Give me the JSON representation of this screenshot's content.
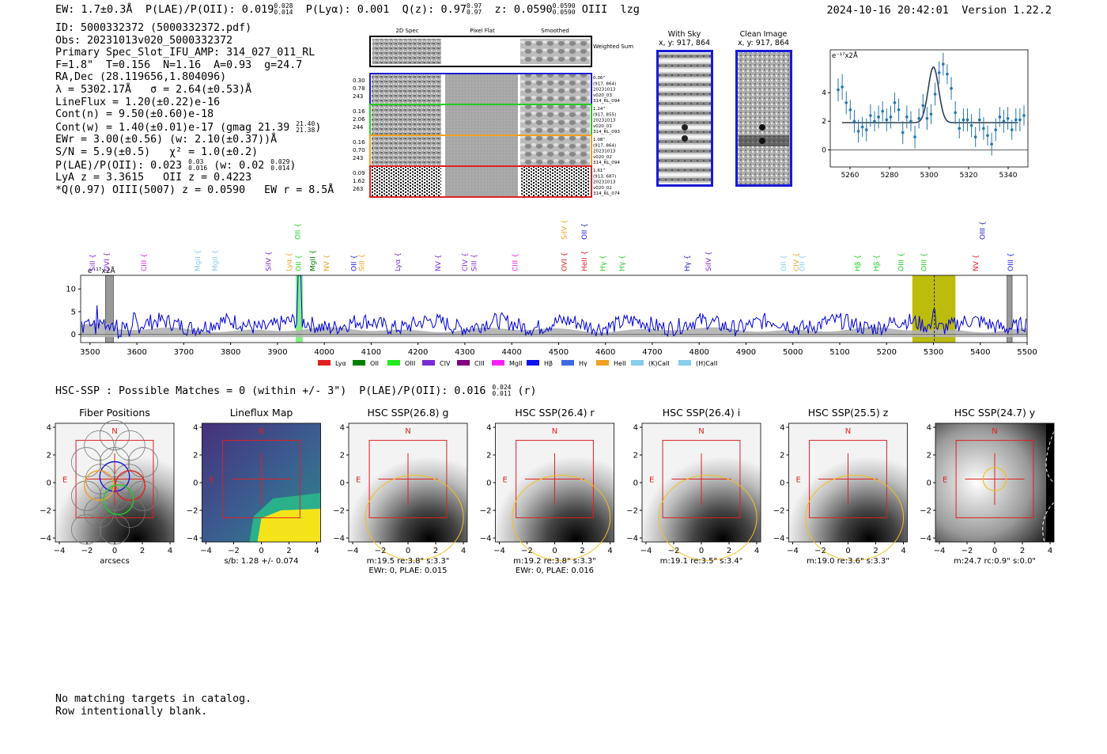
{
  "header": {
    "ew": "EW: 1.7±0.3Å",
    "plae_label": "P(LAE)/P(OII): 0.019",
    "plae_hi": "0.028",
    "plae_lo": "0.014",
    "plya": "P(Lyα): 0.001",
    "q_label": "Q(z): 0.97",
    "q_hi": "0.97",
    "q_lo": "0.97",
    "z_label": "z: 0.0590",
    "z_hi": "0.0590",
    "z_lo": "0.0590",
    "line": "OIII",
    "flag": "lzg",
    "timestamp": "2024-10-16 20:42:01",
    "version": "Version 1.22.2"
  },
  "info": {
    "id": "ID: 5000332372 (5000332372.pdf)",
    "obs": "Obs: 20231013v020_5000332372",
    "primary": "Primary Spec_Slot_IFU_AMP: 314_027_011_RL",
    "params": "F=1.8\"  T=0.156  N=1.16  A=0.93  g=24.7",
    "radec": "RA,Dec (28.119656,1.804096)",
    "lambda": "λ = 5302.17Å   σ = 2.64(±0.53)Å",
    "lineflux": "LineFlux = 1.20(±0.22)e-16",
    "contn": "Cont(n) = 9.50(±0.60)e-18",
    "contw": "Cont(w) = 1.40(±0.01)e-17 (gmag 21.39",
    "contw_hi": "21.40",
    "contw_lo": "21.38",
    "ewr": "EWr = 3.00(±0.56) (w: 2.10(±0.37))Å",
    "sn": "S/N = 5.9(±0.5)   χ² = 1.0(±0.2)",
    "plae": "P(LAE)/P(OII): 0.023",
    "plae_hi": "0.03",
    "plae_lo": "0.016",
    "plae_w": "(w: 0.02",
    "plae_w_hi": "0.029",
    "plae_w_lo": "0.014",
    "lya": "LyA z = 3.3615   OII z = 0.4223",
    "qline": "*Q(0.97) OIII(5007) z = 0.0590   EW r = 8.5Å"
  },
  "cutouts": {
    "col_headers": [
      "2D Spec",
      "Pixel Flat",
      "Smoothed"
    ],
    "weighted_sum": "Weighted Sum",
    "rows": [
      {
        "left": [
          "0.30",
          "0.78",
          "243"
        ],
        "right": [
          "0.36\"",
          "(917, 864)",
          "20231013",
          "v020_03",
          "314_RL_094"
        ],
        "color": "#1a1ad6"
      },
      {
        "left": [
          "0.16",
          "2.06",
          "244"
        ],
        "right": [
          "1.24\"",
          "(917, 855)",
          "20231013",
          "v020_01",
          "314_RL_093"
        ],
        "color": "#22cc22"
      },
      {
        "left": [
          "0.16",
          "0.70",
          "243"
        ],
        "right": [
          "1.08\"",
          "(917, 864)",
          "20231013",
          "v020_02",
          "314_RL_094"
        ],
        "color": "#f2a020"
      },
      {
        "left": [
          "0.09",
          "1.62",
          "263"
        ],
        "right": [
          "1.61\"",
          "(913, 687)",
          "20231013",
          "v020_02",
          "314_RL_074"
        ],
        "color": "#e02020"
      }
    ],
    "with_sky": "With Sky",
    "clean_image": "Clean Image",
    "coord": "x, y: 917, 864"
  },
  "zoom_plot": {
    "ylabel": "e⁻¹⁷x2Å",
    "xticks": [
      "5260",
      "5280",
      "5300",
      "5320",
      "5340"
    ],
    "yticks": [
      "4",
      "2",
      "0"
    ],
    "gauss_center": 5302.2,
    "gauss_sigma": 2.64,
    "gauss_amp": 3.9,
    "baseline": 1.9,
    "points": [
      4.2,
      4.4,
      3.3,
      2.8,
      2.0,
      1.3,
      1.6,
      1.4,
      2.4,
      2.0,
      2.3,
      2.7,
      2.1,
      2.3,
      3.3,
      2.8,
      1.2,
      2.3,
      2.0,
      0.9,
      2.2,
      3.1,
      2.2,
      2.5,
      3.9,
      5.4,
      6.0,
      5.3,
      4.3,
      2.6,
      1.5,
      2.1,
      2.1,
      1.7,
      0.9,
      2.1,
      1.5,
      1.0,
      0.4,
      1.4,
      2.3,
      2.0,
      2.2,
      1.4,
      2.1,
      2.1,
      2.4
    ],
    "errors": [
      0.8,
      0.9,
      0.8,
      0.7,
      0.8,
      0.8,
      0.7,
      0.8,
      0.8,
      0.7,
      0.8,
      0.7,
      0.8,
      0.8,
      0.7,
      0.8,
      0.8,
      0.8,
      0.7,
      0.8,
      0.7,
      0.8,
      0.8,
      0.7,
      0.8,
      0.8,
      0.8,
      0.7,
      0.8,
      0.8,
      0.7,
      0.8,
      0.8,
      0.8,
      0.7,
      0.8,
      0.8,
      0.7,
      0.8,
      0.8,
      0.7,
      0.8,
      0.8,
      0.7,
      0.8,
      0.8,
      0.7
    ]
  },
  "spectrum": {
    "ylabel": "e⁻¹⁷x2Å",
    "xticks": [
      "3500",
      "3600",
      "3700",
      "3800",
      "3900",
      "4000",
      "4100",
      "4200",
      "4300",
      "4400",
      "4500",
      "4600",
      "4700",
      "4800",
      "4900",
      "5000",
      "5100",
      "5200",
      "5300",
      "5400",
      "5500"
    ],
    "yticks": [
      "10",
      "5",
      "0"
    ],
    "line_labels": [
      {
        "text": "SiII",
        "w": 3510,
        "row": 1,
        "color": "#7b2ad6"
      },
      {
        "text": "OVI",
        "w": 3541,
        "row": 1,
        "color": "#7b2ad6"
      },
      {
        "text": "CIII",
        "w": 3620,
        "row": 1,
        "color": "#e020e0"
      },
      {
        "text": "MgII",
        "w": 3735,
        "row": 1,
        "color": "#87ceeb"
      },
      {
        "text": "MgII",
        "w": 3772,
        "row": 1,
        "color": "#87ceeb"
      },
      {
        "text": "SiIV",
        "w": 3886,
        "row": 1,
        "color": "#7b2ad6"
      },
      {
        "text": "Lyα",
        "w": 3930,
        "row": 1,
        "color": "#f2a020"
      },
      {
        "text": "OII",
        "w": 3950,
        "row": 1,
        "color": "#22cc22"
      },
      {
        "text": "OII",
        "w": 3948,
        "row": 0,
        "color": "#22cc22"
      },
      {
        "text": "MgII",
        "w": 3980,
        "row": 1,
        "color": "#008000"
      },
      {
        "text": "NV",
        "w": 4010,
        "row": 1,
        "color": "#f2a020"
      },
      {
        "text": "OII",
        "w": 4068,
        "row": 1,
        "color": "#1a1ad6"
      },
      {
        "text": "SiII",
        "w": 4085,
        "row": 1,
        "color": "#f2a020"
      },
      {
        "text": "Lyα",
        "w": 4162,
        "row": 1,
        "color": "#7b2ad6"
      },
      {
        "text": "NV",
        "w": 4248,
        "row": 1,
        "color": "#7b2ad6"
      },
      {
        "text": "CIV",
        "w": 4305,
        "row": 1,
        "color": "#7b2ad6"
      },
      {
        "text": "SiII",
        "w": 4325,
        "row": 1,
        "color": "#7b2ad6"
      },
      {
        "text": "CIII",
        "w": 4412,
        "row": 1,
        "color": "#e020e0"
      },
      {
        "text": "OVI",
        "w": 4517,
        "row": 1,
        "color": "#e02020"
      },
      {
        "text": "SiIV",
        "w": 4517,
        "row": 0,
        "color": "#f2a020"
      },
      {
        "text": "HeII",
        "w": 4560,
        "row": 1,
        "color": "#e02020"
      },
      {
        "text": "OII",
        "w": 4560,
        "row": 0,
        "color": "#1a1ad6"
      },
      {
        "text": "Hγ",
        "w": 4600,
        "row": 1,
        "color": "#22cc22"
      },
      {
        "text": "Hγ",
        "w": 4640,
        "row": 1,
        "color": "#22cc22"
      },
      {
        "text": "Hγ",
        "w": 4779,
        "row": 1,
        "color": "#1a1ad6"
      },
      {
        "text": "SiIV",
        "w": 4825,
        "row": 1,
        "color": "#7b2ad6"
      },
      {
        "text": "OII",
        "w": 4985,
        "row": 1,
        "color": "#87ceeb"
      },
      {
        "text": "CIV",
        "w": 5012,
        "row": 1,
        "color": "#f2a020"
      },
      {
        "text": "OII",
        "w": 5025,
        "row": 1,
        "color": "#87ceeb"
      },
      {
        "text": "Hβ",
        "w": 5143,
        "row": 1,
        "color": "#22cc22"
      },
      {
        "text": "Hβ",
        "w": 5184,
        "row": 1,
        "color": "#22cc22"
      },
      {
        "text": "OIII",
        "w": 5236,
        "row": 1,
        "color": "#22cc22"
      },
      {
        "text": "OIII",
        "w": 5285,
        "row": 1,
        "color": "#22cc22"
      },
      {
        "text": "NV",
        "w": 5395,
        "row": 1,
        "color": "#e02020"
      },
      {
        "text": "OIII",
        "w": 5410,
        "row": 0,
        "color": "#1a1ad6"
      },
      {
        "text": "OIII",
        "w": 5470,
        "row": 1,
        "color": "#1a1ad6"
      }
    ],
    "legend": [
      {
        "label": "Lyα",
        "color": "#e02020"
      },
      {
        "label": "OII",
        "color": "#008000"
      },
      {
        "label": "OIII",
        "color": "#22ee22"
      },
      {
        "label": "CIV",
        "color": "#7b2ad6"
      },
      {
        "label": "CIII",
        "color": "#800080"
      },
      {
        "label": "MgII",
        "color": "#ff20ff"
      },
      {
        "label": "Hβ",
        "color": "#1010ee"
      },
      {
        "label": "Hγ",
        "color": "#4169e1"
      },
      {
        "label": "HeII",
        "color": "#f2a020"
      },
      {
        "label": "(K)CaII",
        "color": "#87ceeb"
      },
      {
        "label": "(H)CaII",
        "color": "#87ceeb"
      }
    ]
  },
  "hsc": {
    "summary": "HSC-SSP : Possible Matches = 0 (within +/- 3\")  P(LAE)/P(OII): 0.016",
    "summary_hi": "0.024",
    "summary_lo": "0.011",
    "summary_band": "(r)",
    "panels": [
      {
        "title": "Fiber Positions",
        "xlabel": "arcsecs",
        "sub": ""
      },
      {
        "title": "Lineflux Map",
        "xlabel": "s/b: 1.28 +/- 0.074",
        "sub": ""
      },
      {
        "title": "HSC SSP(26.8) g",
        "xlabel": "m:19.5  re:3.8\"  s:3.3\"",
        "sub": "EWr: 0, PLAE: 0.015"
      },
      {
        "title": "HSC SSP(26.4) r",
        "xlabel": "m:19.2  re:3.8\"  s:3.3\"",
        "sub": "EWr: 0, PLAE: 0.016"
      },
      {
        "title": "HSC SSP(26.4) i",
        "xlabel": "m:19.1  re:3.5\"  s:3.4\"",
        "sub": ""
      },
      {
        "title": "HSC SSP(25.5) z",
        "xlabel": "m:19.0  re:3.6\"  s:3.3\"",
        "sub": ""
      },
      {
        "title": "HSC SSP(24.7) y",
        "xlabel": "m:24.7  rc:0.9\"  s:0.0\"",
        "sub": ""
      }
    ],
    "axis_ticks": [
      "4",
      "2",
      "0",
      "−2",
      "−4"
    ],
    "x_ticks": [
      "−4",
      "−2",
      "0",
      "2",
      "4"
    ],
    "north": "N",
    "east": "E"
  },
  "footer": {
    "line1": "No matching targets in catalog.",
    "line2": "Row intentionally blank."
  }
}
